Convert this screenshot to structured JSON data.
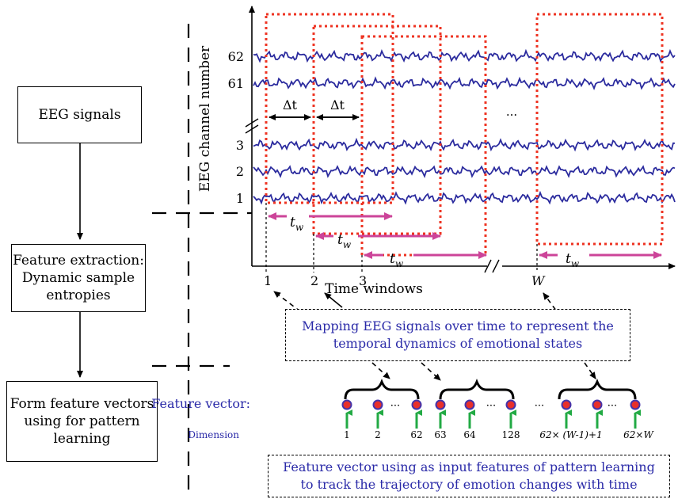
{
  "flow": {
    "box1": "EEG signals",
    "box2_line1": "Feature extraction:",
    "box2_line2": "Dynamic sample",
    "box2_line3": "entropies",
    "box3_line1": "Form feature vectors",
    "box3_line2": "using for pattern",
    "box3_line3": "learning"
  },
  "plot": {
    "ylabel": "EEG channel number",
    "xlabel": "Time windows",
    "channels": [
      "62",
      "61",
      "3",
      "2",
      "1"
    ],
    "windows": [
      "1",
      "2",
      "3",
      "W"
    ],
    "delta": "Δt",
    "tw_main": "t",
    "tw_sub": "w",
    "ellipsis": "···"
  },
  "mapping_note": {
    "line1": "Mapping EEG signals over time to represent the",
    "line2": "temporal dynamics of emotional states"
  },
  "feature": {
    "label": "Feature vector:",
    "dim_label": "Dimension",
    "dims": [
      "1",
      "2",
      "62",
      "63",
      "64",
      "128",
      "62× (W-1)+1",
      "62×W"
    ],
    "ellipsis": "···"
  },
  "bottom_note": {
    "line1": "Feature vector using as input features of pattern learning",
    "line2": "to track the trajectory of emotion changes with time"
  },
  "colors": {
    "signal": "#2b2b9e",
    "window": "#ee3322",
    "tw_arrow": "#cc4499",
    "feature_text": "#2a2aa8",
    "dot_fill": "#e8302a",
    "dot_ring": "#4433aa",
    "up_arrow": "#22aa44"
  }
}
